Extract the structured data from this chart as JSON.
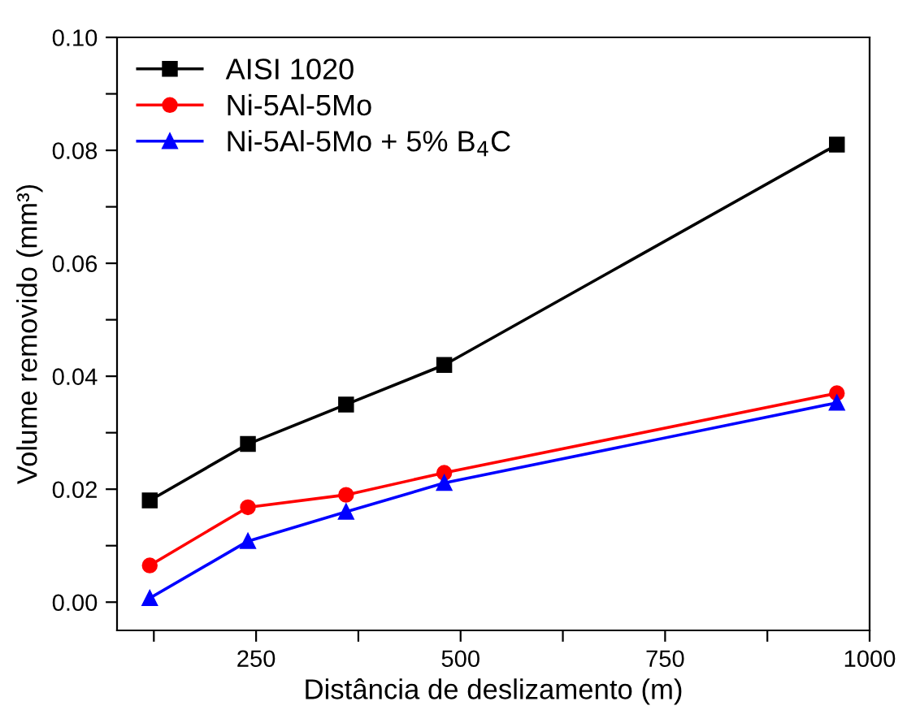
{
  "chart_data": {
    "type": "line",
    "xlabel": "Distância de deslizamento (m)",
    "ylabel": "Volume removido (mm³)",
    "x": [
      120,
      240,
      360,
      480,
      960
    ],
    "series": [
      {
        "name": "AISI 1020",
        "color": "#000000",
        "marker": "square",
        "values": [
          0.018,
          0.028,
          0.035,
          0.042,
          0.081
        ]
      },
      {
        "name": "Ni-5Al-5Mo",
        "color": "#ff0000",
        "marker": "circle",
        "values": [
          0.0065,
          0.0168,
          0.019,
          0.0229,
          0.037
        ]
      },
      {
        "name": "Ni-5Al-5Mo + 5% B$_{4}$C",
        "color": "#0000ff",
        "marker": "triangle",
        "values": [
          0.0007,
          0.0108,
          0.016,
          0.0211,
          0.0353
        ]
      }
    ],
    "xlim": [
      80,
      1000
    ],
    "ylim": [
      -0.005,
      0.1
    ],
    "xticks": [
      {
        "value": 125,
        "label": null
      },
      250,
      {
        "value": 375,
        "label": null
      },
      500,
      {
        "value": 625,
        "label": null
      },
      750,
      {
        "value": 875,
        "label": null
      },
      1000
    ],
    "yticks": [
      {
        "value": 0,
        "label": "0.00"
      },
      {
        "value": 0.01,
        "label": null
      },
      {
        "value": 0.02,
        "label": "0.02"
      },
      {
        "value": 0.03,
        "label": null
      },
      {
        "value": 0.04,
        "label": "0.04"
      },
      {
        "value": 0.05,
        "label": null
      },
      {
        "value": 0.06,
        "label": "0.06"
      },
      {
        "value": 0.07,
        "label": null
      },
      {
        "value": 0.08,
        "label": "0.08"
      },
      {
        "value": 0.09,
        "label": null
      },
      {
        "value": 0.1,
        "label": "0.10"
      }
    ],
    "grid": false,
    "legend": "top left",
    "line_style": "solid"
  }
}
